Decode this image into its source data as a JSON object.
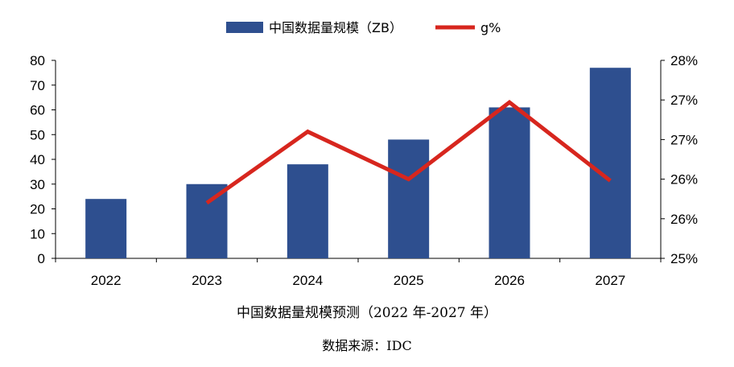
{
  "legend": {
    "bar_label": "中国数据量规模（ZB）",
    "line_label": "g%"
  },
  "caption": {
    "title": "中国数据量规模预测（2022 年-2027 年）",
    "source": "数据来源：IDC"
  },
  "colors": {
    "bar": "#2E4F8F",
    "line": "#D7261E",
    "axis": "#000000"
  },
  "chart_data": {
    "type": "bar",
    "categories": [
      "2022",
      "2023",
      "2024",
      "2025",
      "2026",
      "2027"
    ],
    "series": [
      {
        "name": "中国数据量规模（ZB）",
        "type": "bar",
        "axis": "left",
        "values": [
          24,
          30,
          38,
          48,
          61,
          77
        ]
      },
      {
        "name": "g%",
        "type": "line",
        "axis": "right",
        "values": [
          null,
          25.7,
          26.6,
          26.0,
          26.97,
          25.98
        ]
      }
    ],
    "y_left": {
      "lim": [
        0,
        80
      ],
      "ticks": [
        "0",
        "10",
        "20",
        "30",
        "40",
        "50",
        "60",
        "70",
        "80"
      ]
    },
    "y_right": {
      "lim": [
        25,
        27.5
      ],
      "ticks": [
        "25%",
        "26%",
        "26%",
        "27%",
        "27%",
        "28%"
      ]
    },
    "grid": false,
    "legend_position": "top-center"
  }
}
